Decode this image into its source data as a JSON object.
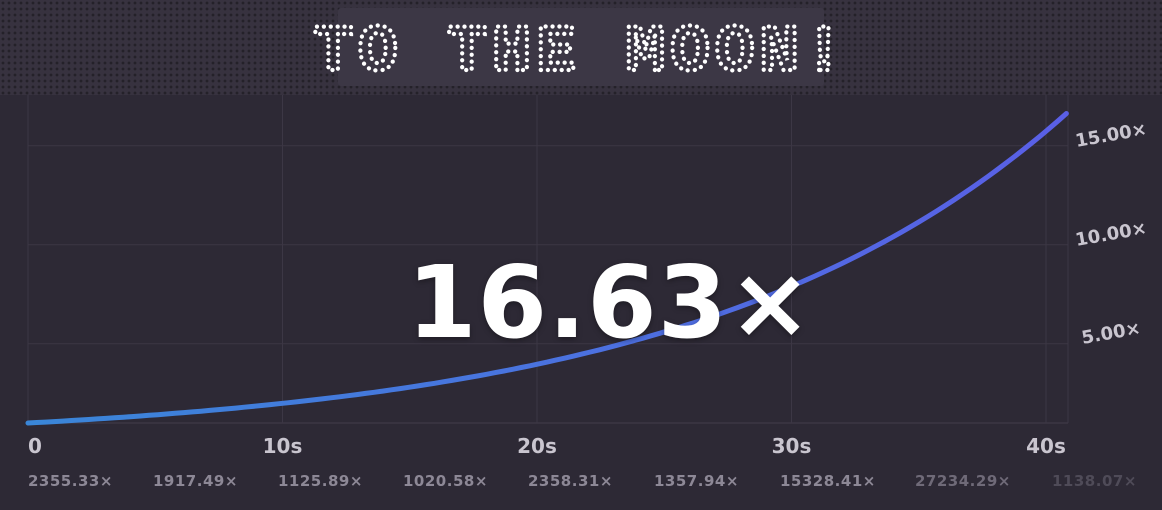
{
  "header": {
    "title": "TO THE MOON!"
  },
  "display": {
    "multiplier": "16.63×"
  },
  "colors": {
    "background": "#2d2935",
    "grid": "#3c3745",
    "curve_start": "#3a86d8",
    "curve_end": "#5a5fe6",
    "label": "#c9c5cf"
  },
  "chart_data": {
    "type": "line",
    "x_ticks": [
      "0",
      "10s",
      "20s",
      "30s",
      "40s"
    ],
    "y_ticks": [
      "5.00×",
      "10.00×",
      "15.00×"
    ],
    "xlim": [
      0,
      40.8
    ],
    "ylim": [
      1,
      16.63
    ],
    "series": [
      {
        "values_note": "",
        "x": [
          0,
          5,
          10,
          15,
          20,
          25,
          30,
          35,
          40.8
        ],
        "y": [
          1.0,
          1.42,
          2.02,
          2.87,
          4.07,
          5.78,
          8.21,
          11.66,
          16.63
        ]
      }
    ]
  },
  "history": [
    "2355.33×",
    "1917.49×",
    "1125.89×",
    "1020.58×",
    "2358.31×",
    "1357.94×",
    "15328.41×",
    "27234.29×",
    "1138.07×"
  ]
}
